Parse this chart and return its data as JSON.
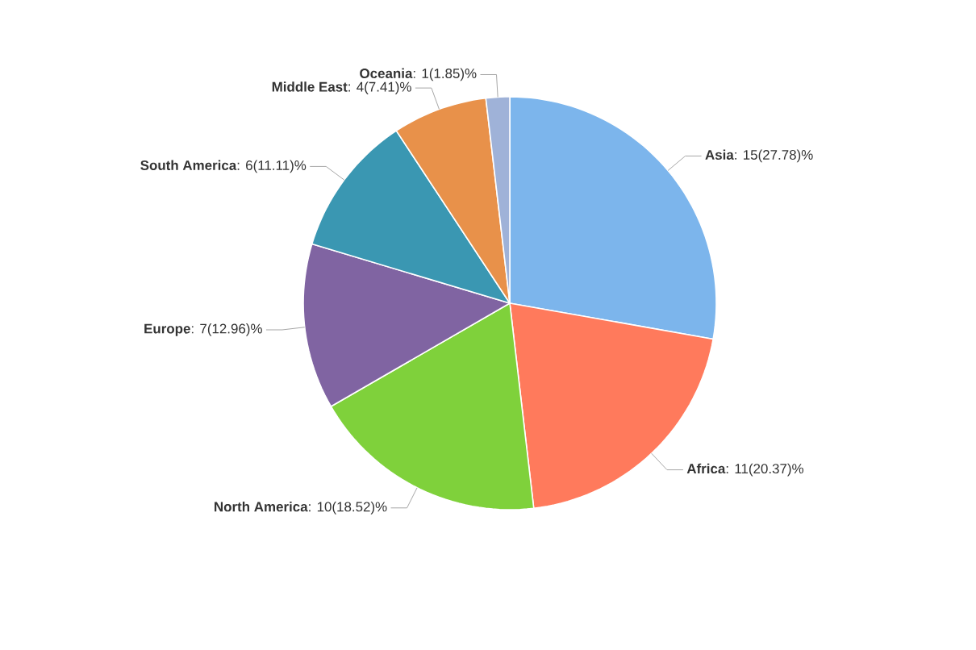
{
  "chart_data": {
    "type": "pie",
    "categories": [
      "Asia",
      "Africa",
      "North America",
      "Europe",
      "South America",
      "Middle East",
      "Oceania"
    ],
    "values": [
      15,
      11,
      10,
      7,
      6,
      4,
      1
    ],
    "value_labels": [
      ": 15(27.78)%",
      ": 11(20.37)%",
      ": 10(18.52)%",
      ": 7(12.96)%",
      ": 6(11.11)%",
      ": 4(7.41)%",
      ": 1(1.85)%"
    ],
    "colors": [
      "#7cb5ec",
      "#ff7a5c",
      "#7fd13b",
      "#8064a2",
      "#3a97b2",
      "#e8914a",
      "#9fb2d8"
    ]
  }
}
